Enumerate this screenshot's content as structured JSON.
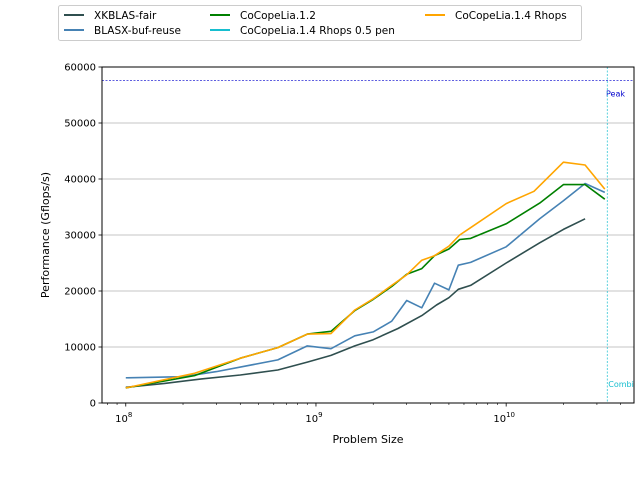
{
  "chart_data": {
    "type": "line",
    "title": "",
    "xlabel": "Problem Size",
    "ylabel": "Performance (Gflops/s)",
    "xscale": "log",
    "xlim": [
      75000000,
      47000000000
    ],
    "ylim": [
      0,
      60000
    ],
    "x_ticks": [
      {
        "value": 100000000,
        "base": "10",
        "exp": "8"
      },
      {
        "value": 1000000000,
        "base": "10",
        "exp": "9"
      },
      {
        "value": 10000000000,
        "base": "10",
        "exp": "10"
      }
    ],
    "y_ticks": [
      0,
      10000,
      20000,
      30000,
      40000,
      50000,
      60000
    ],
    "y_tick_labels": [
      "0",
      "10000",
      "20000",
      "30000",
      "40000",
      "50000",
      "60000"
    ],
    "grid": "horizontal",
    "legend_position": "top, above plot",
    "series": [
      {
        "name": "XKBLAS-fair",
        "color": "#2f4f4f",
        "points": [
          [
            100000000,
            2800
          ],
          [
            160000000,
            3500
          ],
          [
            250000000,
            4300
          ],
          [
            400000000,
            5000
          ],
          [
            630000000,
            5900
          ],
          [
            900000000,
            7300
          ],
          [
            1200000000,
            8500
          ],
          [
            1600000000,
            10200
          ],
          [
            2000000000,
            11300
          ],
          [
            2700000000,
            13300
          ],
          [
            3600000000,
            15600
          ],
          [
            4300000000,
            17500
          ],
          [
            5000000000,
            18800
          ],
          [
            5600000000,
            20300
          ],
          [
            6500000000,
            21000
          ],
          [
            10000000000,
            25000
          ],
          [
            15000000000,
            28600
          ],
          [
            20000000000,
            31000
          ],
          [
            26000000000,
            32900
          ]
        ]
      },
      {
        "name": "BLASX-buf-reuse",
        "color": "#4682b4",
        "points": [
          [
            100000000,
            4500
          ],
          [
            200000000,
            4700
          ],
          [
            300000000,
            5600
          ],
          [
            630000000,
            7700
          ],
          [
            900000000,
            10200
          ],
          [
            1200000000,
            9700
          ],
          [
            1600000000,
            12000
          ],
          [
            2000000000,
            12700
          ],
          [
            2500000000,
            14600
          ],
          [
            3000000000,
            18300
          ],
          [
            3600000000,
            17000
          ],
          [
            4200000000,
            21400
          ],
          [
            5000000000,
            20200
          ],
          [
            5600000000,
            24600
          ],
          [
            6500000000,
            25100
          ],
          [
            10000000000,
            27900
          ],
          [
            15000000000,
            32900
          ],
          [
            20000000000,
            36100
          ],
          [
            26000000000,
            39200
          ],
          [
            33000000000,
            37600
          ]
        ]
      },
      {
        "name": "CoCopeLia.1.2",
        "color": "#008000",
        "points": [
          [
            100000000,
            2700
          ],
          [
            230000000,
            4900
          ],
          [
            400000000,
            8000
          ],
          [
            630000000,
            9900
          ],
          [
            900000000,
            12300
          ],
          [
            1200000000,
            12800
          ],
          [
            1600000000,
            16500
          ],
          [
            2000000000,
            18500
          ],
          [
            2500000000,
            20800
          ],
          [
            3000000000,
            23000
          ],
          [
            3600000000,
            24000
          ],
          [
            4200000000,
            26300
          ],
          [
            5000000000,
            27500
          ],
          [
            5700000000,
            29200
          ],
          [
            6500000000,
            29400
          ],
          [
            10000000000,
            32000
          ],
          [
            15000000000,
            35700
          ],
          [
            20000000000,
            39000
          ],
          [
            26000000000,
            39000
          ],
          [
            33000000000,
            36400
          ]
        ]
      },
      {
        "name": "CoCopeLia.1.4 Rhops 0.5 pen",
        "color": "#17becf",
        "points": []
      },
      {
        "name": "CoCopeLia.1.4 Rhops",
        "color": "#ffa500",
        "points": [
          [
            100000000,
            2700
          ],
          [
            230000000,
            5300
          ],
          [
            400000000,
            8000
          ],
          [
            630000000,
            9900
          ],
          [
            900000000,
            12300
          ],
          [
            1200000000,
            12400
          ],
          [
            1600000000,
            16600
          ],
          [
            2000000000,
            18600
          ],
          [
            2500000000,
            21000
          ],
          [
            3000000000,
            22900
          ],
          [
            3600000000,
            25500
          ],
          [
            4200000000,
            26300
          ],
          [
            5000000000,
            28000
          ],
          [
            5700000000,
            30000
          ],
          [
            6500000000,
            31300
          ],
          [
            10000000000,
            35600
          ],
          [
            14000000000,
            37800
          ],
          [
            20000000000,
            43000
          ],
          [
            26000000000,
            42500
          ],
          [
            33000000000,
            38200
          ]
        ]
      }
    ],
    "reference_lines": [
      {
        "orientation": "horizontal",
        "value": 57600,
        "color": "#0000cd",
        "label": "Peak"
      },
      {
        "orientation": "vertical",
        "value": 34000000000,
        "color": "#17becf",
        "label": "Combi"
      }
    ]
  }
}
